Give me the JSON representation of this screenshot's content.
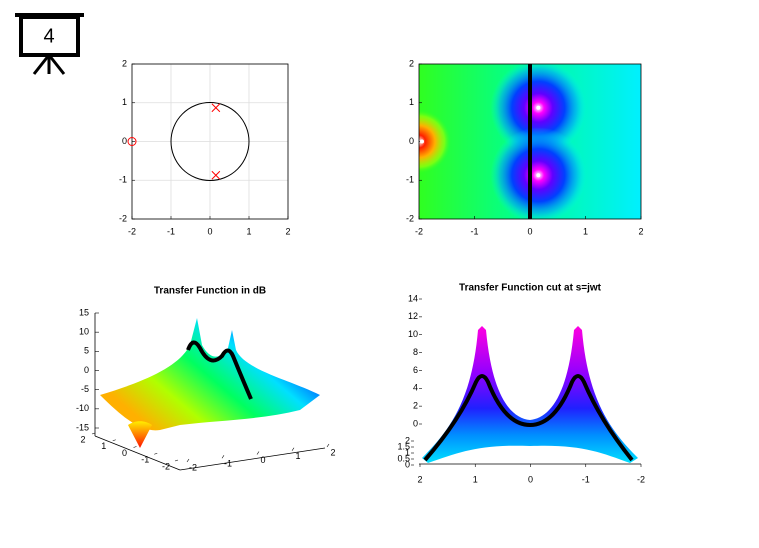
{
  "icon_label": "4",
  "chart_data": [
    {
      "type": "scatter",
      "xlim": [
        -2,
        2
      ],
      "ylim": [
        -2,
        2
      ],
      "xticks": [
        -2,
        -1,
        0,
        1,
        2
      ],
      "yticks": [
        -2,
        -1,
        0,
        1,
        2
      ],
      "grid": true,
      "series": [
        {
          "marker": "o",
          "color": "#ff0000",
          "x": [
            -2
          ],
          "y": [
            0
          ]
        },
        {
          "marker": "x",
          "color": "#ff0000",
          "x": [
            0.15,
            0.15
          ],
          "y": [
            0.87,
            -0.87
          ]
        }
      ]
    },
    {
      "type": "heatmap",
      "xlim": [
        -2,
        2
      ],
      "ylim": [
        -2,
        2
      ],
      "xticks": [
        -2,
        -1,
        0,
        1,
        2
      ],
      "yticks": [
        -2,
        -1,
        0,
        1,
        2
      ],
      "grid": false,
      "series": [
        {
          "marker": "zero",
          "color": "#ffffff",
          "x": [
            -2
          ],
          "y": [
            0
          ]
        },
        {
          "marker": "pole",
          "color": "#ffffff",
          "x": [
            0.15,
            0.15
          ],
          "y": [
            0.87,
            -0.87
          ]
        }
      ]
    },
    {
      "type": "surface",
      "title": "Transfer Function in dB",
      "xlim": [
        -2,
        2
      ],
      "ylim": [
        -2,
        2
      ],
      "zlim": [
        -15,
        15
      ],
      "xticks": [
        -2,
        -1,
        0,
        1,
        2
      ],
      "yticks": [
        2,
        1,
        0,
        -1,
        -2
      ],
      "zticks": [
        -15,
        -10,
        -5,
        0,
        5,
        10,
        15
      ]
    },
    {
      "type": "surface-cut",
      "title": "Transfer Function cut at s=jwt",
      "xlim": [
        2,
        -2
      ],
      "xticks": [
        2,
        1,
        0,
        -1,
        -2
      ],
      "ylim": [
        0,
        14
      ],
      "yticks": [
        0,
        2,
        4,
        6,
        8,
        10,
        12,
        14
      ],
      "y2lim": [
        0,
        2
      ],
      "y2ticks": [
        0,
        0.5,
        1,
        1.5,
        2
      ]
    }
  ]
}
